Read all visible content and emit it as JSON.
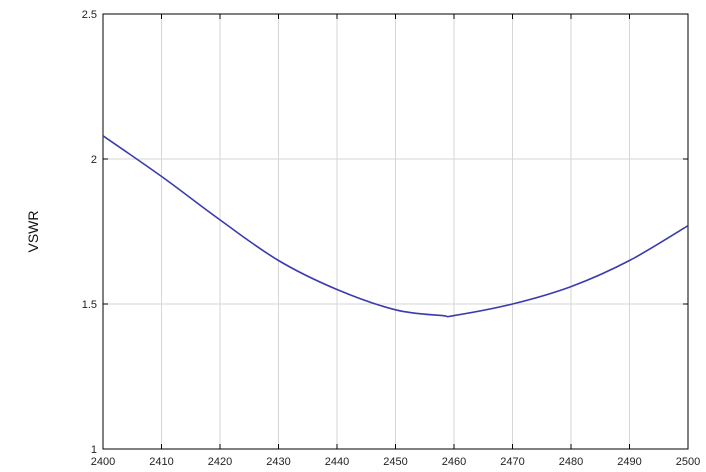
{
  "chart_data": {
    "type": "line",
    "title": "",
    "xlabel": "",
    "ylabel": "VSWR",
    "xlim": [
      2400,
      2500
    ],
    "ylim": [
      1,
      2.5
    ],
    "grid": true,
    "x_ticks": [
      "2400",
      "2410",
      "2420",
      "2430",
      "2440",
      "2450",
      "2460",
      "2470",
      "2480",
      "2490",
      "2500"
    ],
    "y_ticks": [
      "1",
      "1.5",
      "2",
      "2.5"
    ],
    "series": [
      {
        "color": "#3b3bb0",
        "x": [
          2400,
          2410,
          2420,
          2430,
          2440,
          2450,
          2458,
          2460,
          2470,
          2480,
          2490,
          2500
        ],
        "y": [
          2.08,
          1.94,
          1.79,
          1.65,
          1.55,
          1.48,
          1.46,
          1.46,
          1.5,
          1.56,
          1.65,
          1.77
        ]
      }
    ]
  }
}
